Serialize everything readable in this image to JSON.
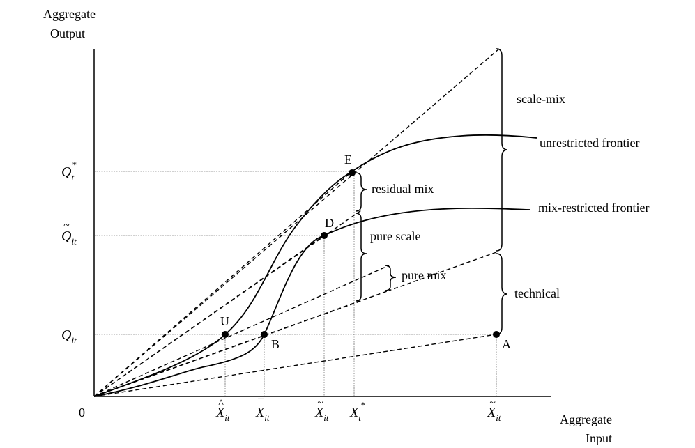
{
  "axes": {
    "y_label_line1": "Aggregate",
    "y_label_line2": "Output",
    "x_label_line1": "Aggregate",
    "x_label_line2": "Input",
    "origin": "0"
  },
  "y_ticks": [
    {
      "sym": "Q",
      "accent": "*",
      "sub": "t"
    },
    {
      "sym": "Q",
      "accent": "~",
      "sub": "it"
    },
    {
      "sym": "Q",
      "accent": "",
      "sub": "it"
    }
  ],
  "x_ticks": [
    {
      "sym": "X",
      "accent": "^",
      "sub": "it"
    },
    {
      "sym": "X",
      "accent": "¯",
      "sub": "it"
    },
    {
      "sym": "X",
      "accent": "~",
      "sub": "it"
    },
    {
      "sym": "X",
      "accent": "*",
      "sub": "t"
    },
    {
      "sym": "X",
      "accent": "~",
      "sub": "it"
    }
  ],
  "points": {
    "U": "U",
    "B": "B",
    "D": "D",
    "E": "E",
    "A": "A"
  },
  "curves": {
    "unrestricted": "unrestricted frontier",
    "mix_restricted": "mix-restricted frontier"
  },
  "braces": {
    "scale_mix": "scale-mix",
    "technical": "technical",
    "residual_mix": "residual mix",
    "pure_scale": "pure scale",
    "pure_mix": "pure mix"
  }
}
